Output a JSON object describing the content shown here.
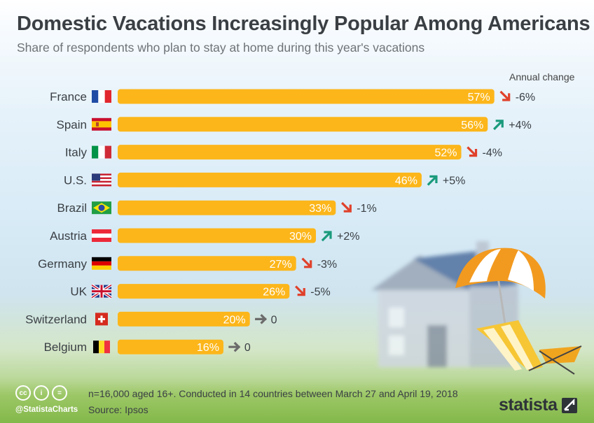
{
  "title": "Domestic Vacations Increasingly Popular Among Americans",
  "subtitle": "Share of respondents who plan to stay at home during this year's vacations",
  "annual_change_label": "Annual change",
  "footer": {
    "note": "n=16,000 aged 16+. Conducted in 14 countries between March 27 and April 19, 2018",
    "source": "Source: Ipsos",
    "handle": "@StatistaCharts",
    "logo": "statista"
  },
  "colors": {
    "bar": "#fcb61a",
    "up": "#1a9a7c",
    "down": "#e0412b",
    "flat": "#6b6b6b",
    "label": "#3a3f44"
  },
  "chart_data": {
    "type": "bar",
    "orientation": "horizontal",
    "unit": "%",
    "xlim": [
      0,
      60
    ],
    "categories": [
      "France",
      "Spain",
      "Italy",
      "U.S.",
      "Brazil",
      "Austria",
      "Germany",
      "UK",
      "Switzerland",
      "Belgium"
    ],
    "values": [
      57,
      56,
      52,
      46,
      33,
      30,
      27,
      26,
      20,
      16
    ],
    "value_labels": [
      "57%",
      "56%",
      "52%",
      "46%",
      "33%",
      "30%",
      "27%",
      "26%",
      "20%",
      "16%"
    ],
    "annual_change": [
      "-6%",
      "+4%",
      "-4%",
      "+5%",
      "-1%",
      "+2%",
      "-3%",
      "-5%",
      "0",
      "0"
    ],
    "annual_change_direction": [
      "down",
      "up",
      "down",
      "up",
      "down",
      "up",
      "down",
      "down",
      "flat",
      "flat"
    ],
    "flags": [
      "france-flag",
      "spain-flag",
      "italy-flag",
      "us-flag",
      "brazil-flag",
      "austria-flag",
      "germany-flag",
      "uk-flag",
      "switzerland-flag",
      "belgium-flag"
    ]
  }
}
